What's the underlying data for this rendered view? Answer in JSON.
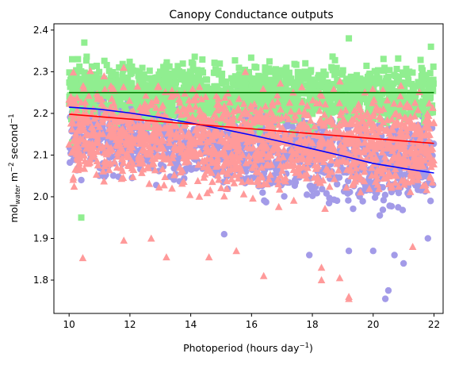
{
  "chart_data": {
    "type": "scatter",
    "title": "Canopy Conductance outputs",
    "xlabel": {
      "base": "Photoperiod (hours day",
      "sup": "−1",
      "tail": ")"
    },
    "ylabel": {
      "mol": "mol",
      "sub": "water",
      "m": " m",
      "sup1": "−2",
      "sec": " second",
      "sup2": "−1"
    },
    "xlim": [
      9.5,
      22.3
    ],
    "ylim": [
      1.72,
      2.415
    ],
    "xticks": [
      {
        "v": 10,
        "label": "10"
      },
      {
        "v": 12,
        "label": "12"
      },
      {
        "v": 14,
        "label": "14"
      },
      {
        "v": 16,
        "label": "16"
      },
      {
        "v": 18,
        "label": "18"
      },
      {
        "v": 20,
        "label": "20"
      },
      {
        "v": 22,
        "label": "22"
      }
    ],
    "yticks": [
      {
        "v": 1.8,
        "label": "1.8"
      },
      {
        "v": 1.9,
        "label": "1.9"
      },
      {
        "v": 2.0,
        "label": "2.0"
      },
      {
        "v": 2.1,
        "label": "2.1"
      },
      {
        "v": 2.2,
        "label": "2.2"
      },
      {
        "v": 2.3,
        "label": "2.3"
      },
      {
        "v": 2.4,
        "label": "2.4"
      }
    ],
    "grid": false,
    "legend": "none",
    "series": [
      {
        "marker": "circle",
        "color": "#a39be8",
        "band": [
          [
            10,
            2.02,
            2.31
          ],
          [
            14,
            1.99,
            2.29
          ],
          [
            18,
            1.95,
            2.27
          ],
          [
            22,
            1.92,
            2.25
          ]
        ],
        "outliers": [
          [
            20.4,
            1.755
          ],
          [
            20.5,
            1.775
          ],
          [
            21.0,
            1.84
          ],
          [
            20.0,
            1.87
          ],
          [
            21.8,
            1.9
          ],
          [
            19.2,
            1.87
          ],
          [
            17.9,
            1.86
          ],
          [
            20.7,
            1.86
          ],
          [
            15.1,
            1.91
          ],
          [
            10.4,
            2.04
          ]
        ]
      },
      {
        "marker": "square",
        "color": "#90ee90",
        "band": [
          [
            10,
            2.15,
            2.35
          ],
          [
            14,
            2.14,
            2.35
          ],
          [
            18,
            2.14,
            2.35
          ],
          [
            22,
            2.15,
            2.35
          ]
        ],
        "outliers": [
          [
            10.4,
            1.95
          ],
          [
            10.5,
            2.37
          ],
          [
            19.2,
            2.38
          ],
          [
            10.1,
            2.13
          ],
          [
            21.9,
            2.36
          ],
          [
            10.1,
            2.33
          ]
        ]
      },
      {
        "marker": "triangle",
        "color": "#ff9a9a",
        "band": [
          [
            10,
            2.0,
            2.32
          ],
          [
            14,
            1.97,
            2.31
          ],
          [
            18,
            1.96,
            2.3
          ],
          [
            22,
            1.97,
            2.28
          ]
        ],
        "outliers": [
          [
            10.45,
            1.853
          ],
          [
            11.8,
            1.895
          ],
          [
            13.2,
            1.855
          ],
          [
            14.6,
            1.855
          ],
          [
            16.4,
            1.81
          ],
          [
            18.3,
            1.83
          ],
          [
            18.3,
            1.8
          ],
          [
            19.2,
            1.76
          ],
          [
            19.2,
            1.755
          ],
          [
            18.9,
            1.805
          ],
          [
            15.5,
            1.87
          ],
          [
            12.7,
            1.9
          ],
          [
            21.3,
            1.88
          ]
        ]
      }
    ],
    "fit_lines": [
      {
        "color": "#008000",
        "x": [
          10,
          22
        ],
        "y": [
          2.25,
          2.25
        ]
      },
      {
        "color": "#0000ff",
        "x": [
          10,
          11,
          12,
          13,
          14,
          15,
          16,
          17,
          18,
          19,
          20,
          21,
          22
        ],
        "y": [
          2.215,
          2.21,
          2.201,
          2.19,
          2.177,
          2.163,
          2.148,
          2.132,
          2.115,
          2.098,
          2.08,
          2.068,
          2.057
        ]
      },
      {
        "color": "#ff0000",
        "x": [
          10,
          22
        ],
        "y": [
          2.198,
          2.128
        ]
      }
    ]
  }
}
